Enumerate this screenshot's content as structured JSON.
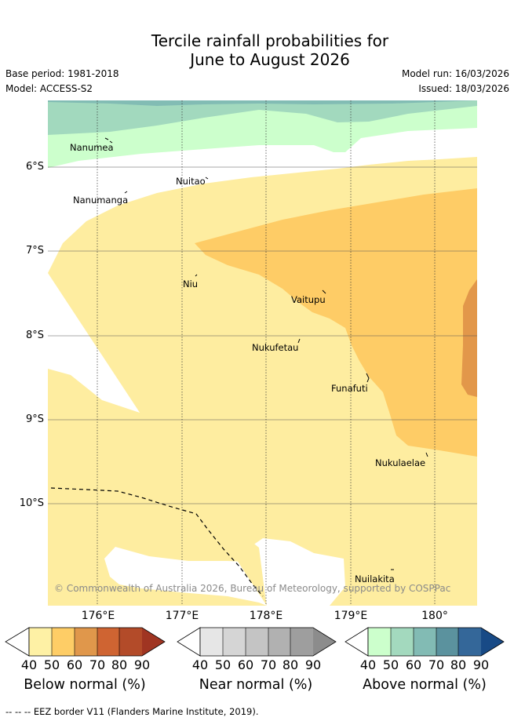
{
  "title": {
    "line1": "Tercile rainfall probabilities for",
    "line2": "June to August 2026"
  },
  "meta": {
    "base_period": "Base period: 1981-2018",
    "model": "Model: ACCESS-S2",
    "model_run": "Model run: 16/03/2026",
    "issued": "Issued: 18/03/2026"
  },
  "map": {
    "lat_labels": [
      "6°S",
      "7°S",
      "8°S",
      "9°S",
      "10°S"
    ],
    "lon_labels": [
      "176°E",
      "177°E",
      "178°E",
      "179°E",
      "180°"
    ],
    "places": [
      "Nanumea",
      "Nuitao",
      "Nanumanga",
      "Niu",
      "Vaitupu",
      "Nukufetau",
      "Funafuti",
      "Nukulaelae",
      "Nuilakita"
    ],
    "copyright": "© Commonwealth of Australia 2026, Bureau of Meteorology, supported by COSPPac",
    "colors": {
      "below_50": "#feeda0",
      "below_60": "#fecc66",
      "below_70": "#e2974a",
      "near_40": "#e6e6e6",
      "above_50": "#ccffcc",
      "above_60": "#a2d9be",
      "above_70": "#82bcb4",
      "ocean": "#ffffff"
    }
  },
  "colorbars": {
    "ticks": [
      "40",
      "50",
      "60",
      "70",
      "80",
      "90"
    ],
    "below": {
      "title": "Below normal (%)",
      "colors": [
        "#fef1a5",
        "#fecd66",
        "#e0974b",
        "#cf6432",
        "#b34b29",
        "#a03522"
      ]
    },
    "near": {
      "title": "Near normal (%)",
      "colors": [
        "#e6e6e6",
        "#d5d5d5",
        "#c4c4c4",
        "#b1b1b1",
        "#9e9e9e",
        "#8c8c8c"
      ]
    },
    "above": {
      "title": "Above normal (%)",
      "colors": [
        "#ccffcc",
        "#a3d9be",
        "#82bbb4",
        "#5b929e",
        "#346799",
        "#184a86"
      ]
    }
  },
  "footer": {
    "legend_line": "-- -- -- EEZ border V11 (Flanders Marine Institute, 2019)."
  }
}
